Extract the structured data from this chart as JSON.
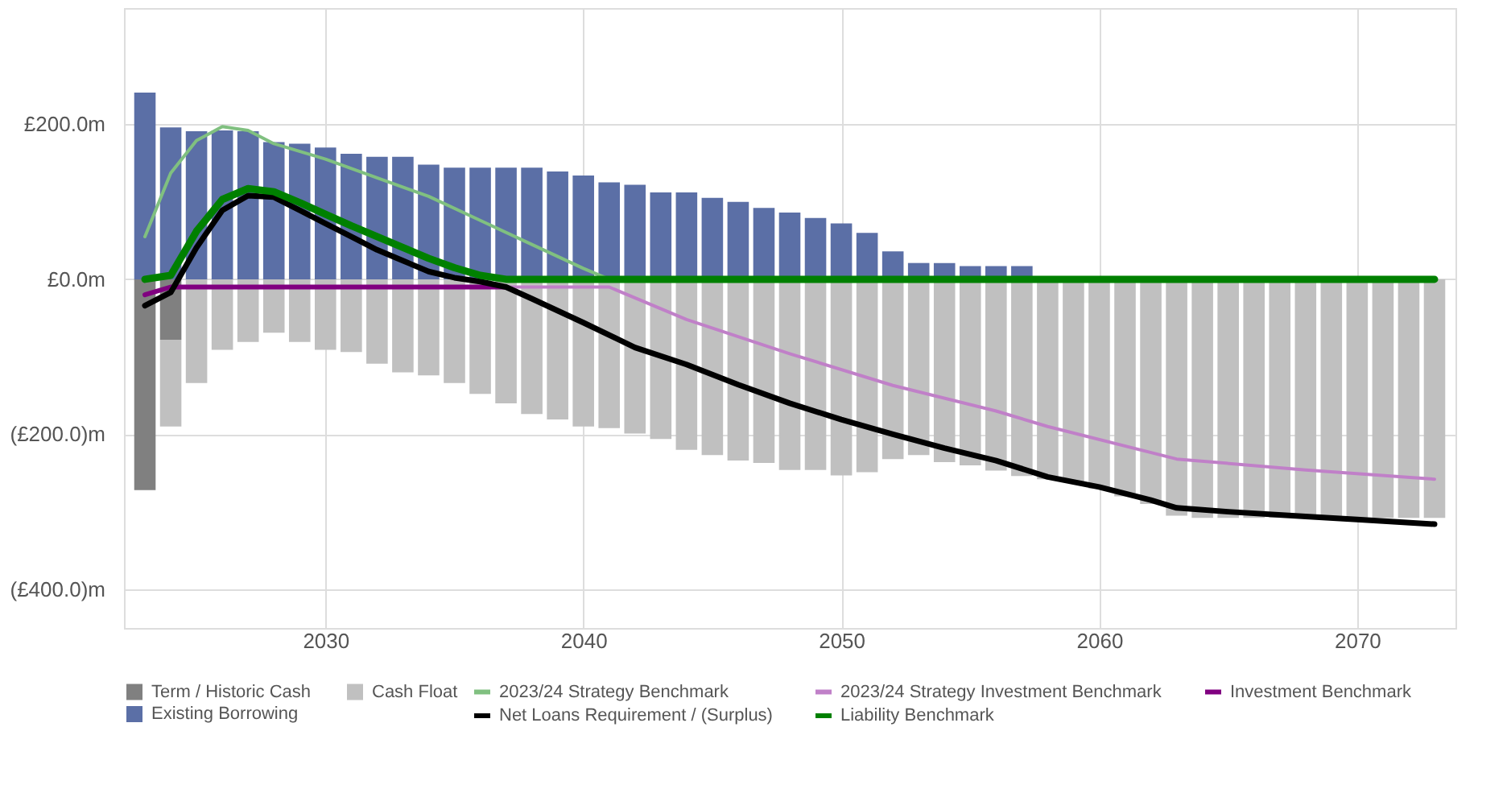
{
  "chart_data": {
    "type": "bar",
    "stacked": true,
    "legend": "bottom",
    "grid": true,
    "line_style": "solid",
    "marker": "none",
    "x": [
      2023,
      2024,
      2025,
      2026,
      2027,
      2028,
      2029,
      2030,
      2031,
      2032,
      2033,
      2034,
      2035,
      2036,
      2037,
      2038,
      2039,
      2040,
      2041,
      2042,
      2043,
      2044,
      2045,
      2046,
      2047,
      2048,
      2049,
      2050,
      2051,
      2052,
      2053,
      2054,
      2055,
      2056,
      2057,
      2058,
      2059,
      2060,
      2061,
      2062,
      2063,
      2064,
      2065,
      2066,
      2067,
      2068,
      2069,
      2070,
      2071,
      2072,
      2073
    ],
    "xlim": [
      2022.5,
      2073.5
    ],
    "xticks": [
      2030,
      2040,
      2050,
      2060,
      2070
    ],
    "ylim": [
      -450,
      350
    ],
    "yticks": [
      {
        "value": 200,
        "label": "£200.0m"
      },
      {
        "value": 0,
        "label": "£0.0m"
      },
      {
        "value": -200,
        "label": "(£200.0)m"
      },
      {
        "value": -400,
        "label": "(£400.0)m"
      }
    ],
    "series": [
      {
        "name": "Term / Historic Cash",
        "color": "#808080",
        "values": [
          -272,
          -78,
          null,
          null,
          null,
          null,
          null,
          null,
          null,
          null,
          null,
          null,
          null,
          null,
          null,
          null,
          null,
          null,
          null,
          null,
          null,
          null,
          null,
          null,
          null,
          null,
          null,
          null,
          null,
          null,
          null,
          null,
          null,
          null,
          null,
          null,
          null,
          null,
          null,
          null,
          null,
          null,
          null,
          null,
          null,
          null,
          null,
          null,
          null,
          null,
          null
        ]
      },
      {
        "name": "Cash Float",
        "color": "#c0c0c0",
        "values": [
          null,
          -112,
          -134,
          -91,
          -81,
          -69,
          -81,
          -91,
          -94,
          -109,
          -120,
          -124,
          -134,
          -148,
          -160,
          -174,
          -181,
          -190,
          -192,
          -199,
          -206,
          -220,
          -227,
          -234,
          -237,
          -246,
          -246,
          -253,
          -249,
          -232,
          -227,
          -236,
          -240,
          -247,
          -254,
          -258,
          -262,
          -270,
          -280,
          -290,
          -305,
          -308,
          -308,
          -308,
          -308,
          -308,
          -308,
          -308,
          -308,
          -308,
          -308
        ]
      },
      {
        "name": "Existing Borrowing",
        "color": "#5b6fa6",
        "values": [
          241,
          196,
          191,
          192,
          191,
          177,
          175,
          170,
          162,
          158,
          158,
          148,
          144,
          144,
          144,
          144,
          139,
          134,
          125,
          122,
          112,
          112,
          105,
          100,
          92,
          86,
          79,
          72,
          60,
          36,
          21,
          21,
          17,
          17,
          17,
          null,
          null,
          null,
          null,
          null,
          null,
          null,
          null,
          null,
          null,
          null,
          null,
          null,
          null,
          null,
          null
        ]
      },
      {
        "name": "2023/24 Strategy Benchmark",
        "type": "line",
        "color": "#80c080",
        "x": [
          2023,
          2024,
          2025,
          2026,
          2027,
          2028,
          2030,
          2032,
          2034,
          2036,
          2038,
          2040,
          2041
        ],
        "values": [
          55,
          137,
          179,
          197,
          192,
          175,
          155,
          131,
          107,
          76,
          45,
          14,
          0
        ]
      },
      {
        "name": "2023/24 Strategy Investment Benchmark",
        "type": "line",
        "color": "#c080c8",
        "x": [
          2037,
          2041,
          2044,
          2048,
          2052,
          2056,
          2058,
          2063,
          2068,
          2073
        ],
        "values": [
          -10,
          -10,
          -52,
          -96,
          -137,
          -170,
          -190,
          -232,
          -246,
          -258
        ]
      },
      {
        "name": "Investment Benchmark",
        "type": "line",
        "color": "#800080",
        "x": [
          2023,
          2024,
          2037
        ],
        "values": [
          -20,
          -10,
          -10
        ]
      },
      {
        "name": "Net Loans Requirement / (Surplus)",
        "type": "line",
        "color": "#000000",
        "x": [
          2023,
          2024,
          2025,
          2026,
          2027,
          2028,
          2029,
          2030,
          2031,
          2032,
          2033,
          2034,
          2035,
          2036,
          2037,
          2038,
          2040,
          2042,
          2044,
          2046,
          2048,
          2050,
          2052,
          2054,
          2056,
          2058,
          2060,
          2062,
          2063,
          2065,
          2068,
          2070,
          2073
        ],
        "values": [
          -34,
          -17,
          41,
          89,
          108,
          106,
          89,
          72,
          55,
          38,
          24,
          10,
          2,
          -3,
          -10,
          -25,
          -56,
          -88,
          -110,
          -136,
          -160,
          -181,
          -200,
          -218,
          -234,
          -255,
          -268,
          -285,
          -295,
          -300,
          -306,
          -310,
          -316
        ]
      },
      {
        "name": "Liability Benchmark",
        "type": "line",
        "color": "#008000",
        "x": [
          2023,
          2024,
          2025,
          2026,
          2027,
          2028,
          2029,
          2030,
          2031,
          2032,
          2033,
          2034,
          2035,
          2036,
          2037,
          2073
        ],
        "values": [
          0,
          5,
          62,
          103,
          117,
          113,
          99,
          84,
          69,
          55,
          41,
          27,
          15,
          5,
          0,
          0
        ]
      }
    ]
  }
}
